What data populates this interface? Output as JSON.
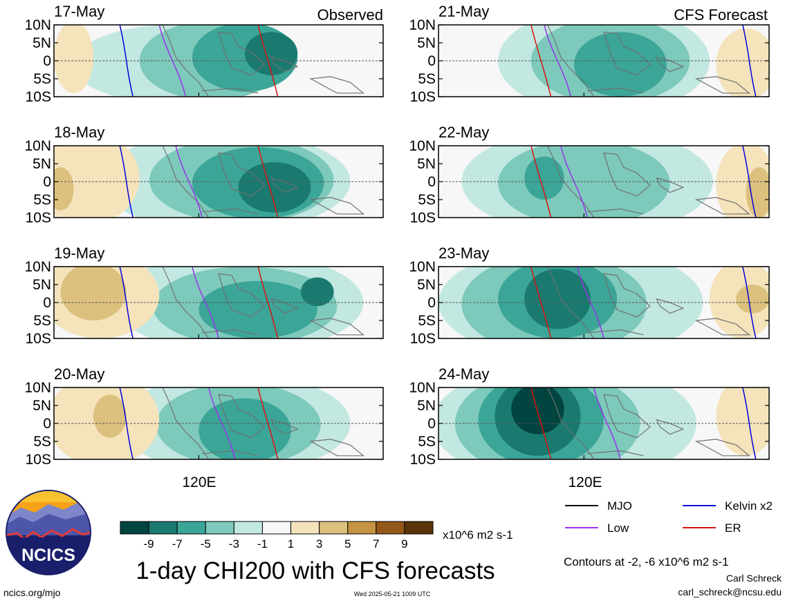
{
  "chart_data": {
    "type": "map",
    "title": "1-day CHI200 with CFS forecasts",
    "units": "x10^6 m2 s-1",
    "contour_note": "Contours at -2, -6 x10^6 m2 s-1",
    "author": "Carl Schreck",
    "email": "carl_schreck@ncsu.edu",
    "site": "ncics.org/mjo",
    "timestamp": "Wed 2025-05-21 1009 UTC",
    "logo_text": "NCICS",
    "headers": {
      "observed": "Observed",
      "forecast": "CFS Forecast"
    },
    "lat_labels": [
      "10N",
      "5N",
      "0",
      "5S",
      "10S"
    ],
    "lon_label": "120E",
    "panels_observed": [
      {
        "date": "17-May",
        "blobs": [
          {
            "cx": 0.36,
            "cy": 0.55,
            "rx": 0.3,
            "ry": 0.55,
            "level": 1
          },
          {
            "cx": 0.48,
            "cy": 0.5,
            "rx": 0.22,
            "ry": 0.55,
            "level": 2
          },
          {
            "cx": 0.58,
            "cy": 0.45,
            "rx": 0.16,
            "ry": 0.48,
            "level": 3
          },
          {
            "cx": 0.66,
            "cy": 0.4,
            "rx": 0.08,
            "ry": 0.3,
            "level": 4
          },
          {
            "cx": 0.06,
            "cy": 0.45,
            "rx": 0.06,
            "ry": 0.5,
            "level": -1
          }
        ]
      },
      {
        "date": "18-May",
        "blobs": [
          {
            "cx": 0.52,
            "cy": 0.5,
            "rx": 0.38,
            "ry": 0.7,
            "level": 1
          },
          {
            "cx": 0.57,
            "cy": 0.48,
            "rx": 0.28,
            "ry": 0.6,
            "level": 2
          },
          {
            "cx": 0.62,
            "cy": 0.52,
            "rx": 0.2,
            "ry": 0.5,
            "level": 3
          },
          {
            "cx": 0.67,
            "cy": 0.58,
            "rx": 0.11,
            "ry": 0.35,
            "level": 4
          },
          {
            "cx": 0.1,
            "cy": 0.45,
            "rx": 0.16,
            "ry": 0.65,
            "level": -1
          },
          {
            "cx": 0.02,
            "cy": 0.6,
            "rx": 0.04,
            "ry": 0.3,
            "level": -2
          }
        ]
      },
      {
        "date": "19-May",
        "blobs": [
          {
            "cx": 0.56,
            "cy": 0.5,
            "rx": 0.38,
            "ry": 0.7,
            "level": 1
          },
          {
            "cx": 0.58,
            "cy": 0.55,
            "rx": 0.28,
            "ry": 0.55,
            "level": 2
          },
          {
            "cx": 0.62,
            "cy": 0.6,
            "rx": 0.18,
            "ry": 0.4,
            "level": 3
          },
          {
            "cx": 0.8,
            "cy": 0.35,
            "rx": 0.05,
            "ry": 0.2,
            "level": 4
          },
          {
            "cx": 0.14,
            "cy": 0.4,
            "rx": 0.18,
            "ry": 0.6,
            "level": -1
          },
          {
            "cx": 0.12,
            "cy": 0.35,
            "rx": 0.1,
            "ry": 0.4,
            "level": -2
          }
        ]
      },
      {
        "date": "20-May",
        "blobs": [
          {
            "cx": 0.55,
            "cy": 0.5,
            "rx": 0.35,
            "ry": 0.7,
            "level": 1
          },
          {
            "cx": 0.56,
            "cy": 0.52,
            "rx": 0.25,
            "ry": 0.58,
            "level": 2
          },
          {
            "cx": 0.58,
            "cy": 0.6,
            "rx": 0.14,
            "ry": 0.45,
            "level": 3
          },
          {
            "cx": 0.15,
            "cy": 0.45,
            "rx": 0.17,
            "ry": 0.65,
            "level": -1
          },
          {
            "cx": 0.17,
            "cy": 0.4,
            "rx": 0.05,
            "ry": 0.3,
            "level": -2
          }
        ]
      }
    ],
    "panels_forecast": [
      {
        "date": "21-May",
        "blobs": [
          {
            "cx": 0.5,
            "cy": 0.5,
            "rx": 0.32,
            "ry": 0.75,
            "level": 1
          },
          {
            "cx": 0.52,
            "cy": 0.5,
            "rx": 0.24,
            "ry": 0.6,
            "level": 2
          },
          {
            "cx": 0.55,
            "cy": 0.55,
            "rx": 0.14,
            "ry": 0.45,
            "level": 3
          },
          {
            "cx": 0.93,
            "cy": 0.55,
            "rx": 0.09,
            "ry": 0.5,
            "level": -1
          }
        ]
      },
      {
        "date": "22-May",
        "blobs": [
          {
            "cx": 0.45,
            "cy": 0.5,
            "rx": 0.38,
            "ry": 0.75,
            "level": 1
          },
          {
            "cx": 0.44,
            "cy": 0.52,
            "rx": 0.26,
            "ry": 0.6,
            "level": 2
          },
          {
            "cx": 0.32,
            "cy": 0.45,
            "rx": 0.06,
            "ry": 0.3,
            "level": 3
          },
          {
            "cx": 0.93,
            "cy": 0.55,
            "rx": 0.09,
            "ry": 0.6,
            "level": -1
          },
          {
            "cx": 0.97,
            "cy": 0.65,
            "rx": 0.04,
            "ry": 0.35,
            "level": -2
          }
        ]
      },
      {
        "date": "23-May",
        "blobs": [
          {
            "cx": 0.4,
            "cy": 0.5,
            "rx": 0.4,
            "ry": 0.8,
            "level": 1
          },
          {
            "cx": 0.35,
            "cy": 0.52,
            "rx": 0.28,
            "ry": 0.7,
            "level": 2
          },
          {
            "cx": 0.36,
            "cy": 0.45,
            "rx": 0.18,
            "ry": 0.55,
            "level": 3
          },
          {
            "cx": 0.36,
            "cy": 0.45,
            "rx": 0.1,
            "ry": 0.42,
            "level": 4
          },
          {
            "cx": 0.92,
            "cy": 0.45,
            "rx": 0.1,
            "ry": 0.55,
            "level": -1
          },
          {
            "cx": 0.95,
            "cy": 0.45,
            "rx": 0.05,
            "ry": 0.2,
            "level": -2
          }
        ]
      },
      {
        "date": "24-May",
        "blobs": [
          {
            "cx": 0.38,
            "cy": 0.5,
            "rx": 0.4,
            "ry": 0.85,
            "level": 1
          },
          {
            "cx": 0.33,
            "cy": 0.5,
            "rx": 0.28,
            "ry": 0.75,
            "level": 2
          },
          {
            "cx": 0.31,
            "cy": 0.45,
            "rx": 0.19,
            "ry": 0.65,
            "level": 3
          },
          {
            "cx": 0.3,
            "cy": 0.4,
            "rx": 0.13,
            "ry": 0.55,
            "level": 4
          },
          {
            "cx": 0.3,
            "cy": 0.3,
            "rx": 0.08,
            "ry": 0.35,
            "level": 5
          },
          {
            "cx": 0.93,
            "cy": 0.4,
            "rx": 0.09,
            "ry": 0.55,
            "level": -1
          }
        ]
      }
    ],
    "colorbar": {
      "ticks": [
        "-9",
        "-7",
        "-5",
        "-3",
        "-1",
        "1",
        "3",
        "5",
        "7",
        "9"
      ],
      "colors": [
        "#00453f",
        "#1a7a6f",
        "#3ba597",
        "#7dc9bb",
        "#c2e8e1",
        "#f7f7f7",
        "#f4e3bb",
        "#dcc17e",
        "#c49444",
        "#93581a",
        "#5a3408"
      ]
    },
    "legend": [
      {
        "label": "MJO",
        "color": "#000000"
      },
      {
        "label": "Kelvin x2",
        "color": "#0000dd"
      },
      {
        "label": "Low",
        "color": "#9933ee"
      },
      {
        "label": "ER",
        "color": "#dd1111"
      }
    ]
  }
}
